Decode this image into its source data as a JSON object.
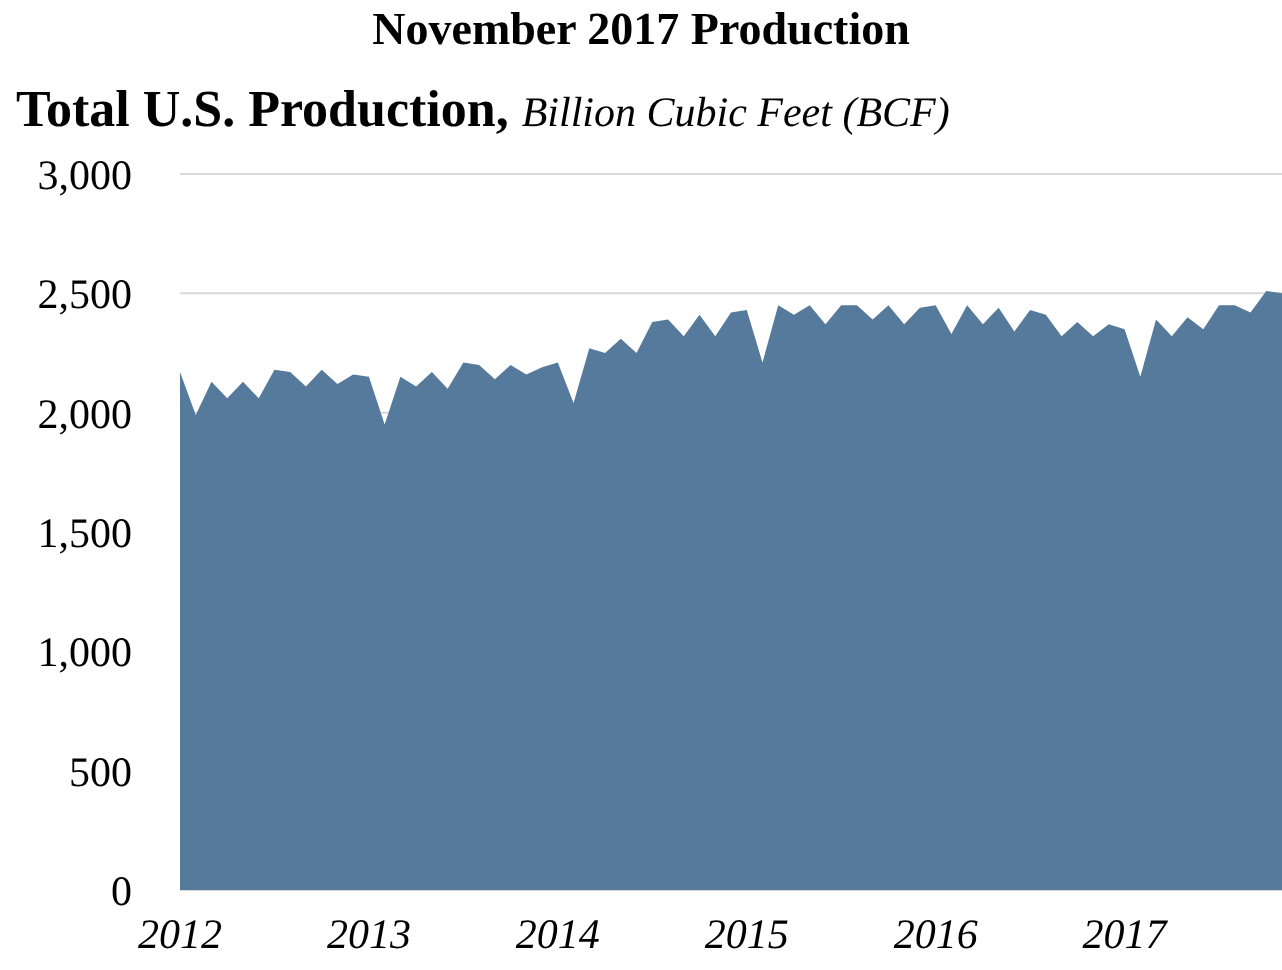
{
  "chart_data": {
    "type": "area",
    "title": "November 2017 Production",
    "subtitle": "Total U.S. Production,",
    "ylabel": "Billion Cubic Feet (BCF)",
    "categories": [
      "2012",
      null,
      null,
      null,
      null,
      null,
      null,
      null,
      null,
      null,
      null,
      null,
      "2013",
      null,
      null,
      null,
      null,
      null,
      null,
      null,
      null,
      null,
      null,
      null,
      "2014",
      null,
      null,
      null,
      null,
      null,
      null,
      null,
      null,
      null,
      null,
      null,
      "2015",
      null,
      null,
      null,
      null,
      null,
      null,
      null,
      null,
      null,
      null,
      null,
      "2016",
      null,
      null,
      null,
      null,
      null,
      null,
      null,
      null,
      null,
      null,
      null,
      "2017",
      null,
      null,
      null,
      null,
      null,
      null,
      null,
      null,
      null,
      null
    ],
    "series": [
      {
        "color": "#567a9b",
        "values": [
          2170,
          1990,
          2130,
          2060,
          2130,
          2060,
          2180,
          2170,
          2110,
          2180,
          2120,
          2160,
          2150,
          1950,
          2150,
          2110,
          2170,
          2100,
          2210,
          2200,
          2140,
          2200,
          2160,
          2190,
          2210,
          2040,
          2270,
          2250,
          2310,
          2250,
          2380,
          2390,
          2320,
          2410,
          2320,
          2420,
          2430,
          2210,
          2450,
          2410,
          2450,
          2370,
          2450,
          2450,
          2390,
          2450,
          2370,
          2440,
          2450,
          2330,
          2450,
          2370,
          2440,
          2340,
          2430,
          2410,
          2320,
          2380,
          2320,
          2370,
          2350,
          2150,
          2390,
          2320,
          2400,
          2350,
          2450,
          2450,
          2420,
          2510,
          2500
        ]
      }
    ],
    "ylim": [
      0,
      3000
    ],
    "yticks": [
      0,
      500,
      {
        "value": 1000,
        "label": "1,000"
      },
      {
        "value": 1500,
        "label": "1,500"
      },
      {
        "value": 2000,
        "label": "2,000"
      },
      {
        "value": 2500,
        "label": "2,500"
      },
      {
        "value": 3000,
        "label": "3,000"
      }
    ],
    "grid": "y"
  }
}
